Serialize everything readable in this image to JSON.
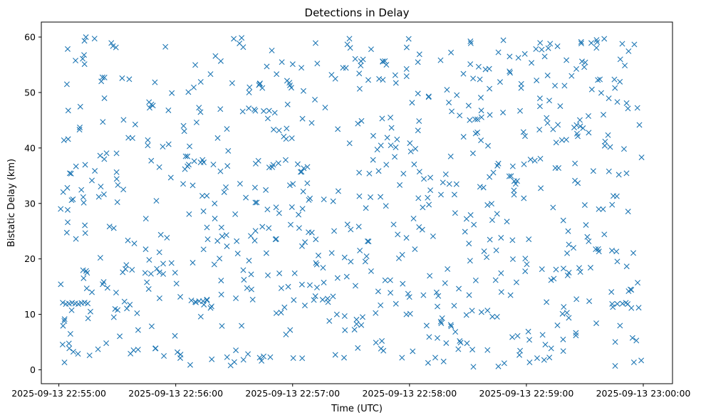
{
  "chart_data": {
    "type": "scatter",
    "title": "Detections in Delay",
    "xlabel": "Time (UTC)",
    "ylabel": "Bistatic Delay (km)",
    "marker": "x",
    "series_color": "#1f77b4",
    "grid": false,
    "legend": "none",
    "x_start": "2025-09-13 22:55:00",
    "x_end": "2025-09-13 23:00:00",
    "xlim": [
      "2025-09-13 22:54:51",
      "2025-09-13 23:00:15"
    ],
    "ylim": [
      -2.5,
      62.7
    ],
    "xticks": [
      "2025-09-13 22:55:00",
      "2025-09-13 22:56:00",
      "2025-09-13 22:57:00",
      "2025-09-13 22:58:00",
      "2025-09-13 22:59:00",
      "2025-09-13 23:00:00"
    ],
    "yticks": [
      0,
      10,
      20,
      30,
      40,
      50,
      60
    ],
    "clusters": [
      {
        "time": "2025-09-13 22:55:06",
        "delay": 12.0,
        "count": 9
      },
      {
        "time": "2025-09-13 22:56:12",
        "delay": 12.4,
        "count": 5
      },
      {
        "time": "2025-09-13 22:59:48",
        "delay": 12.0,
        "count": 4
      }
    ]
  }
}
